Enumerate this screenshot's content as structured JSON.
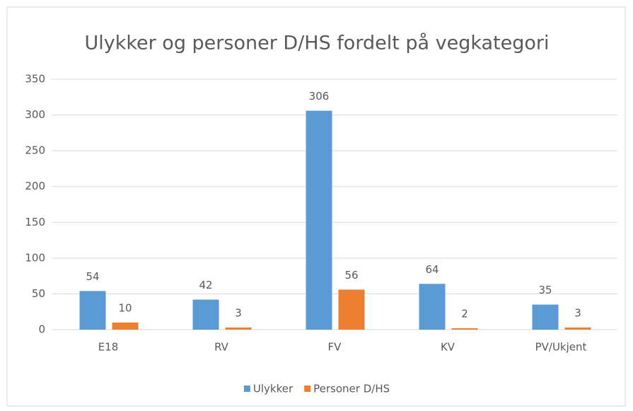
{
  "chart_data": {
    "type": "bar",
    "title": "Ulykker og personer D/HS fordelt på vegkategori",
    "categories": [
      "E18",
      "RV",
      "FV",
      "KV",
      "PV/Ukjent"
    ],
    "series": [
      {
        "name": "Ulykker",
        "color": "#5b9bd5",
        "values": [
          54,
          42,
          306,
          64,
          35
        ]
      },
      {
        "name": "Personer D/HS",
        "color": "#ed7d31",
        "values": [
          10,
          3,
          56,
          2,
          3
        ]
      }
    ],
    "ylim": [
      0,
      350
    ],
    "yticks": [
      0,
      50,
      100,
      150,
      200,
      250,
      300,
      350
    ],
    "grid": true,
    "legend": "bottom"
  }
}
